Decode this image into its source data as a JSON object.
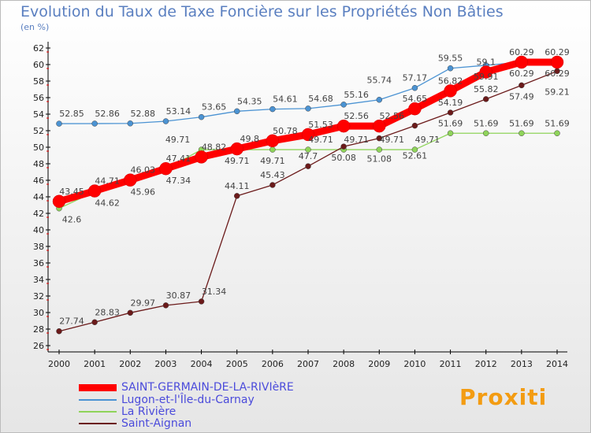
{
  "chart_data": {
    "type": "line",
    "title": "Evolution du Taux de Taxe Foncière sur les Propriétés Non Bâties",
    "subtitle": "(en %)",
    "x": [
      2000,
      2001,
      2002,
      2003,
      2004,
      2005,
      2006,
      2007,
      2008,
      2009,
      2010,
      2011,
      2012,
      2013,
      2014
    ],
    "ylim": [
      26,
      62
    ],
    "yticks": [
      26,
      28,
      30,
      32,
      34,
      36,
      38,
      40,
      42,
      44,
      46,
      48,
      50,
      52,
      54,
      56,
      58,
      60,
      62
    ],
    "series": [
      {
        "name": "SAINT-GERMAIN-DE-LA-RIVIèRE",
        "color": "#ff0000",
        "values": [
          43.45,
          44.71,
          46.03,
          47.41,
          48.82,
          49.8,
          50.78,
          51.53,
          52.56,
          52.56,
          54.65,
          56.82,
          59.1,
          60.29,
          60.29
        ]
      },
      {
        "name": "Lugon-et-l'Île-du-Carnay",
        "color": "#4b93d3",
        "values": [
          52.85,
          52.86,
          52.88,
          53.14,
          53.65,
          54.35,
          54.61,
          54.68,
          55.16,
          55.74,
          57.17,
          59.55,
          59.91,
          60.29,
          60.29
        ]
      },
      {
        "name": "La Rivière",
        "color": "#8fd45a",
        "values": [
          42.6,
          44.62,
          45.96,
          47.34,
          49.71,
          49.71,
          49.71,
          49.71,
          49.71,
          49.71,
          49.71,
          51.69,
          51.69,
          51.69,
          51.69
        ]
      },
      {
        "name": "Saint-Aignan",
        "color": "#6b1a1a",
        "values": [
          27.74,
          28.83,
          29.97,
          30.87,
          31.34,
          44.11,
          45.43,
          47.7,
          50.08,
          51.08,
          52.61,
          54.19,
          55.82,
          57.49,
          59.21
        ]
      }
    ]
  },
  "logo": "Proxiti"
}
